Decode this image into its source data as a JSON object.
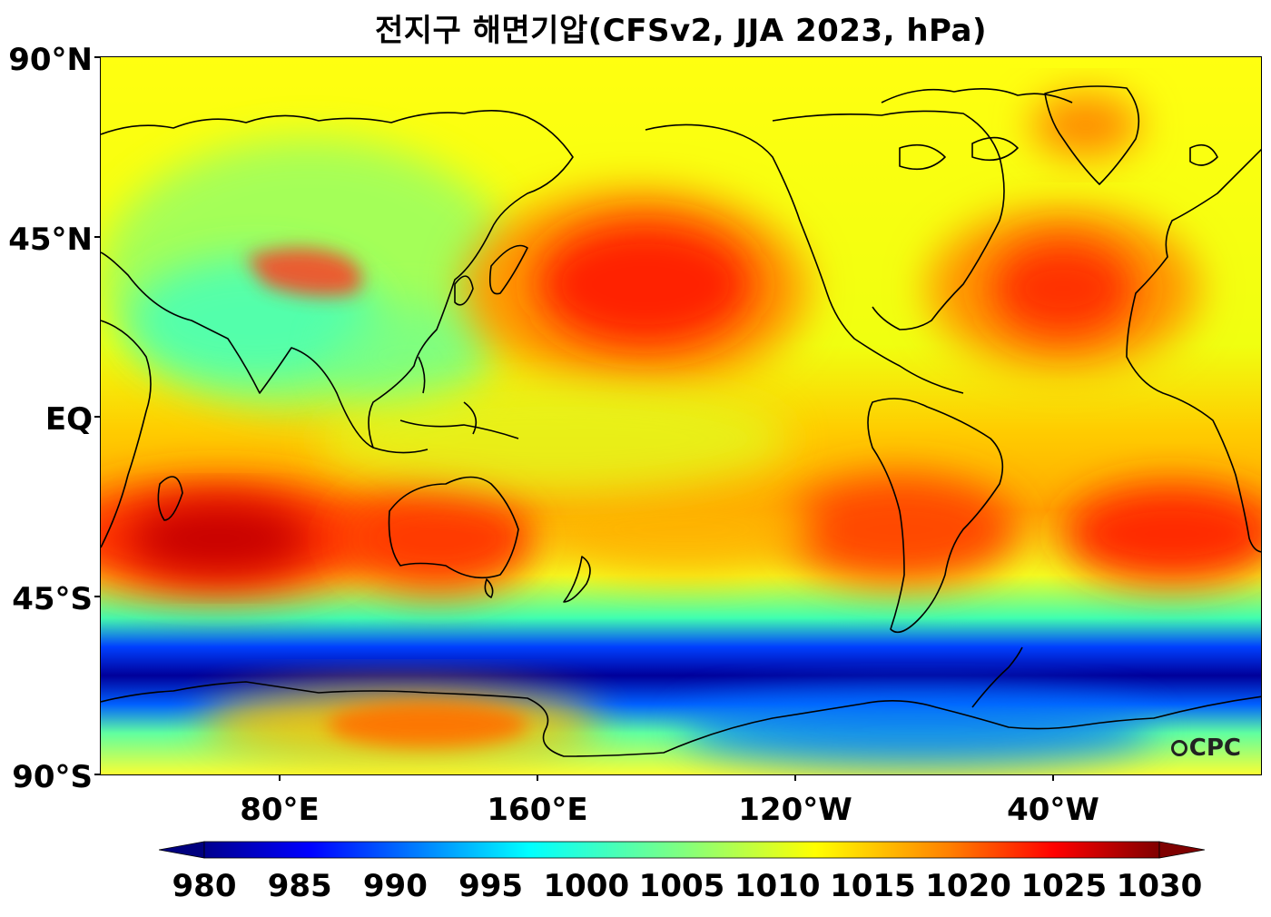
{
  "title": "전지구 해면기압(CFSv2, JJA 2023, hPa)",
  "lat_labels": [
    "90°N",
    "45°N",
    "EQ",
    "45°S",
    "90°S"
  ],
  "lon_labels": [
    "80°E",
    "160°E",
    "120°W",
    "40°W"
  ],
  "colorbar": {
    "min": 980,
    "max": 1030,
    "extend": "both",
    "colormap": "jet",
    "ticks": [
      "980",
      "985",
      "990",
      "995",
      "1000",
      "1005",
      "1010",
      "1015",
      "1020",
      "1025",
      "1030"
    ]
  },
  "watermark": "CPC",
  "colors": {
    "jet_stops": [
      "#00007f",
      "#0000ff",
      "#007fff",
      "#00ffff",
      "#7fff7f",
      "#ffff00",
      "#ff7f00",
      "#ff0000",
      "#7f0000"
    ]
  }
}
